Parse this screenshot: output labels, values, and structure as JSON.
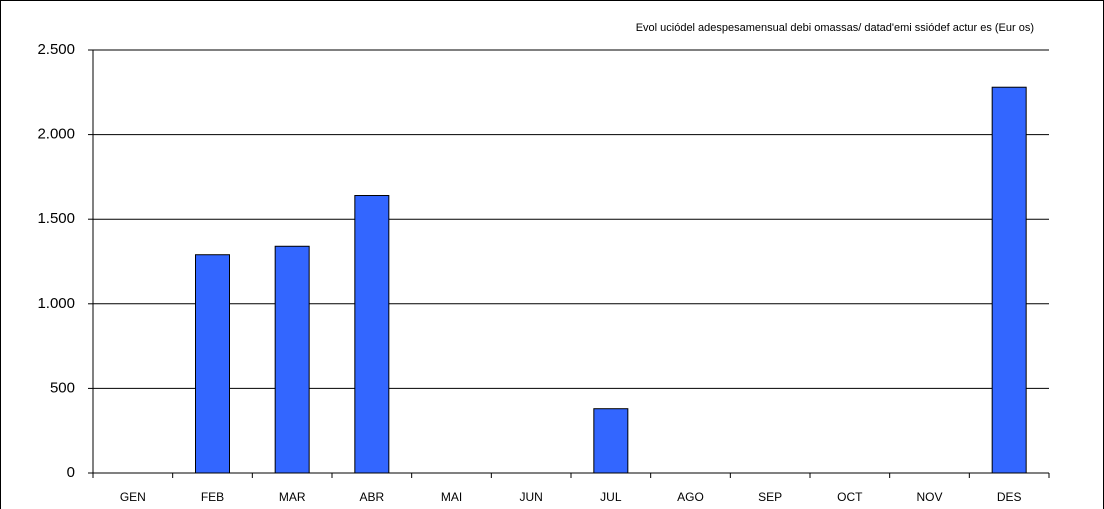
{
  "chart_data": {
    "type": "bar",
    "title": "Evol uciódel adespesamensual debi omassas/ datad'emi ssiódef actur es (Eur os)",
    "categories": [
      "GEN",
      "FEB",
      "MAR",
      "ABR",
      "MAI",
      "JUN",
      "JUL",
      "AGO",
      "SEP",
      "OCT",
      "NOV",
      "DES"
    ],
    "values": [
      0,
      1290,
      1340,
      1640,
      0,
      0,
      380,
      0,
      0,
      0,
      0,
      2280
    ],
    "color": "#3366ff",
    "ylim": [
      0,
      2500
    ],
    "yticks": [
      0,
      500,
      {
        "value": 1000,
        "label": "1.000"
      },
      {
        "value": 1500,
        "label": "1.500"
      },
      {
        "value": 2000,
        "label": "2.000"
      },
      {
        "value": 2500,
        "label": "2.500"
      }
    ],
    "grid": true
  }
}
